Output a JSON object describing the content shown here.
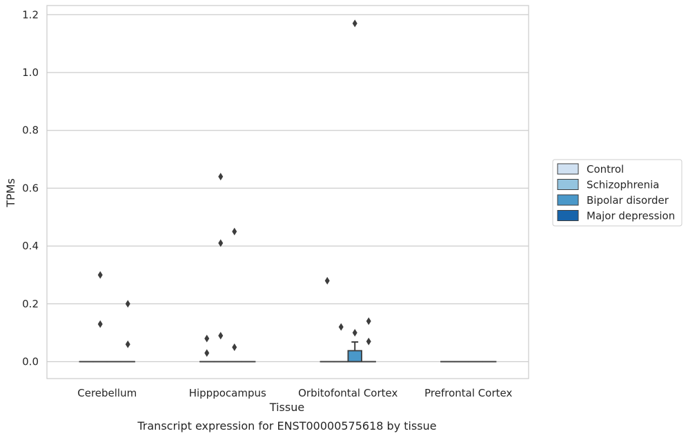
{
  "chart_data": {
    "type": "box",
    "caption": "Transcript expression for ENST00000575618 by tissue",
    "xlabel": "Tissue",
    "ylabel": "TPMs",
    "ylim": [
      -0.058,
      1.23
    ],
    "yticks": [
      0.0,
      0.2,
      0.4,
      0.6,
      0.8,
      1.0,
      1.2
    ],
    "ytick_labels": [
      "0.0",
      "0.2",
      "0.4",
      "0.6",
      "0.8",
      "1.0",
      "1.2"
    ],
    "grid": true,
    "legend_position": "right",
    "categories": [
      "Cerebellum",
      "Hipppocampus",
      "Orbitofontal Cortex",
      "Prefrontal Cortex"
    ],
    "series": [
      {
        "name": "Control",
        "color": "#d0e1f2"
      },
      {
        "name": "Schizophrenia",
        "color": "#94c4df"
      },
      {
        "name": "Bipolar disorder",
        "color": "#4a98c9"
      },
      {
        "name": "Major depression",
        "color": "#1764ab"
      }
    ],
    "boxes": [
      {
        "category": "Cerebellum",
        "series": "Control",
        "q1": 0,
        "median": 0,
        "q3": 0,
        "whisker_low": 0,
        "whisker_high": 0,
        "outliers": []
      },
      {
        "category": "Cerebellum",
        "series": "Schizophrenia",
        "q1": 0,
        "median": 0,
        "q3": 0,
        "whisker_low": 0,
        "whisker_high": 0,
        "outliers": [
          0.3,
          0.13
        ]
      },
      {
        "category": "Cerebellum",
        "series": "Bipolar disorder",
        "q1": 0,
        "median": 0,
        "q3": 0,
        "whisker_low": 0,
        "whisker_high": 0,
        "outliers": []
      },
      {
        "category": "Cerebellum",
        "series": "Major depression",
        "q1": 0,
        "median": 0,
        "q3": 0,
        "whisker_low": 0,
        "whisker_high": 0,
        "outliers": [
          0.2,
          0.06
        ]
      },
      {
        "category": "Hipppocampus",
        "series": "Control",
        "q1": 0,
        "median": 0,
        "q3": 0,
        "whisker_low": 0,
        "whisker_high": 0,
        "outliers": [
          0.08,
          0.03
        ]
      },
      {
        "category": "Hipppocampus",
        "series": "Schizophrenia",
        "q1": 0,
        "median": 0,
        "q3": 0,
        "whisker_low": 0,
        "whisker_high": 0,
        "outliers": [
          0.64,
          0.41,
          0.09
        ]
      },
      {
        "category": "Hipppocampus",
        "series": "Bipolar disorder",
        "q1": 0,
        "median": 0,
        "q3": 0,
        "whisker_low": 0,
        "whisker_high": 0,
        "outliers": [
          0.45,
          0.05
        ]
      },
      {
        "category": "Hipppocampus",
        "series": "Major depression",
        "q1": 0,
        "median": 0,
        "q3": 0,
        "whisker_low": 0,
        "whisker_high": 0,
        "outliers": []
      },
      {
        "category": "Orbitofontal Cortex",
        "series": "Control",
        "q1": 0,
        "median": 0,
        "q3": 0,
        "whisker_low": 0,
        "whisker_high": 0,
        "outliers": [
          0.28
        ]
      },
      {
        "category": "Orbitofontal Cortex",
        "series": "Schizophrenia",
        "q1": 0,
        "median": 0,
        "q3": 0,
        "whisker_low": 0,
        "whisker_high": 0,
        "outliers": [
          0.12
        ]
      },
      {
        "category": "Orbitofontal Cortex",
        "series": "Bipolar disorder",
        "q1": 0,
        "median": 0,
        "q3": 0.038,
        "whisker_low": 0,
        "whisker_high": 0.068,
        "outliers": [
          1.17,
          0.1
        ]
      },
      {
        "category": "Orbitofontal Cortex",
        "series": "Major depression",
        "q1": 0,
        "median": 0,
        "q3": 0,
        "whisker_low": 0,
        "whisker_high": 0,
        "outliers": [
          0.14,
          0.07
        ]
      },
      {
        "category": "Prefrontal Cortex",
        "series": "Control",
        "q1": 0,
        "median": 0,
        "q3": 0,
        "whisker_low": 0,
        "whisker_high": 0,
        "outliers": []
      },
      {
        "category": "Prefrontal Cortex",
        "series": "Schizophrenia",
        "q1": 0,
        "median": 0,
        "q3": 0,
        "whisker_low": 0,
        "whisker_high": 0,
        "outliers": []
      },
      {
        "category": "Prefrontal Cortex",
        "series": "Bipolar disorder",
        "q1": 0,
        "median": 0,
        "q3": 0,
        "whisker_low": 0,
        "whisker_high": 0,
        "outliers": []
      },
      {
        "category": "Prefrontal Cortex",
        "series": "Major depression",
        "q1": 0,
        "median": 0,
        "q3": 0,
        "whisker_low": 0,
        "whisker_high": 0,
        "outliers": []
      }
    ]
  }
}
